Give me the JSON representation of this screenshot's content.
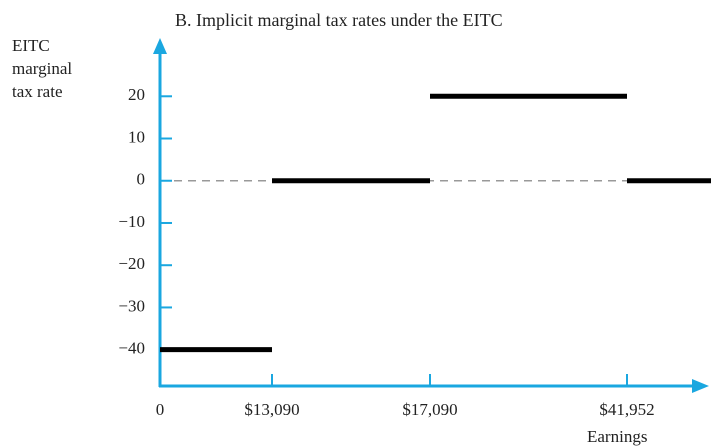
{
  "chart_data": {
    "type": "step",
    "title": "B. Implicit marginal tax rates under the EITC",
    "ylabel": [
      "EITC",
      "marginal",
      "tax rate"
    ],
    "xlabel": "Earnings",
    "categories": [
      "0",
      "$13,090",
      "$17,090",
      "$41,952"
    ],
    "values": [
      -40,
      0,
      20,
      0
    ],
    "color": "#000000",
    "axis_color": "#1aa7e0",
    "reference_line": 0,
    "ylim": [
      -48.6,
      33.8
    ],
    "yticks": [
      20,
      10,
      0,
      {
        "value": -10,
        "label": "−10"
      },
      {
        "value": -20,
        "label": "−20"
      },
      {
        "value": -30,
        "label": "−30"
      },
      {
        "value": -40,
        "label": "−40"
      }
    ]
  }
}
